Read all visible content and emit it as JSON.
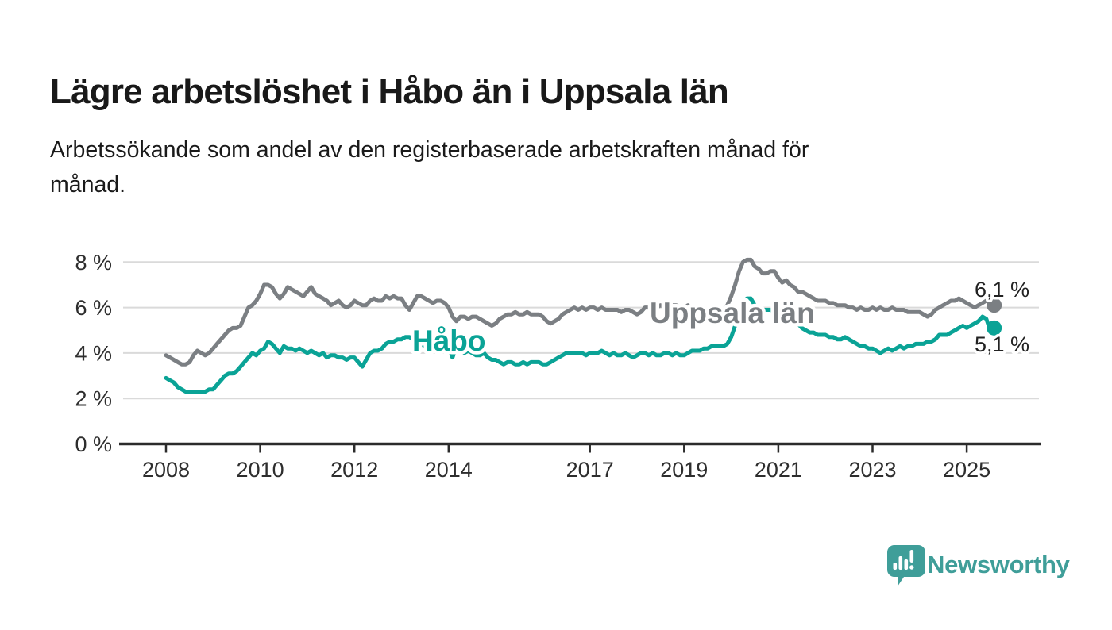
{
  "header": {
    "title": "Lägre arbetslöshet i Håbo än i Uppsala län",
    "subtitle_line1": "Arbetssökande som andel av den registerbaserade arbetskraften månad för",
    "subtitle_line2": "månad."
  },
  "chart_data": {
    "type": "line",
    "unit": "%",
    "grid": true,
    "x_axis": {
      "tick_years": [
        2008,
        2010,
        2012,
        2014,
        2017,
        2019,
        2021,
        2023,
        2025
      ]
    },
    "y_axis": {
      "range": [
        0,
        8.6
      ],
      "ticks": [
        {
          "value": 0,
          "label": "0 %"
        },
        {
          "value": 2,
          "label": "2 %"
        },
        {
          "value": 4,
          "label": "4 %"
        },
        {
          "value": 6,
          "label": "6 %"
        },
        {
          "value": 8,
          "label": "8 %"
        }
      ]
    },
    "start_year": 2008,
    "interval_months": 1,
    "colors": {
      "grid": "#dadada",
      "axis": "#2b2b2b",
      "tick_text": "#2e2e2e",
      "value_label_text": "#222222"
    },
    "series": [
      {
        "name": "Uppsala län",
        "color": "#7b7f83",
        "end_label": "6,1 %",
        "values": [
          3.9,
          3.8,
          3.7,
          3.6,
          3.5,
          3.5,
          3.6,
          3.9,
          4.1,
          4.0,
          3.9,
          4.0,
          4.2,
          4.4,
          4.6,
          4.8,
          5.0,
          5.1,
          5.1,
          5.2,
          5.6,
          6.0,
          6.1,
          6.3,
          6.6,
          7.0,
          7.0,
          6.9,
          6.6,
          6.4,
          6.6,
          6.9,
          6.8,
          6.7,
          6.6,
          6.5,
          6.7,
          6.9,
          6.6,
          6.5,
          6.4,
          6.3,
          6.1,
          6.2,
          6.3,
          6.1,
          6.0,
          6.1,
          6.3,
          6.2,
          6.1,
          6.1,
          6.3,
          6.4,
          6.3,
          6.3,
          6.5,
          6.4,
          6.5,
          6.4,
          6.4,
          6.1,
          5.9,
          6.2,
          6.5,
          6.5,
          6.4,
          6.3,
          6.2,
          6.3,
          6.3,
          6.2,
          6.0,
          5.6,
          5.4,
          5.6,
          5.6,
          5.5,
          5.6,
          5.6,
          5.5,
          5.4,
          5.3,
          5.2,
          5.3,
          5.5,
          5.6,
          5.7,
          5.7,
          5.8,
          5.7,
          5.7,
          5.8,
          5.7,
          5.7,
          5.7,
          5.6,
          5.4,
          5.3,
          5.4,
          5.5,
          5.7,
          5.8,
          5.9,
          6.0,
          5.9,
          6.0,
          5.9,
          6.0,
          6.0,
          5.9,
          6.0,
          5.9,
          5.9,
          5.9,
          5.9,
          5.8,
          5.9,
          5.9,
          5.8,
          5.7,
          5.8,
          6.0,
          6.0,
          6.1,
          6.0,
          6.1,
          6.0,
          6.0,
          6.1,
          6.1,
          6.0,
          6.0,
          6.1,
          6.0,
          6.0,
          5.9,
          5.9,
          5.9,
          5.9,
          5.9,
          6.0,
          5.9,
          6.1,
          6.5,
          7.0,
          7.6,
          8.0,
          8.1,
          8.1,
          7.8,
          7.7,
          7.5,
          7.5,
          7.6,
          7.6,
          7.3,
          7.1,
          7.2,
          7.0,
          6.9,
          6.7,
          6.7,
          6.6,
          6.5,
          6.4,
          6.3,
          6.3,
          6.3,
          6.2,
          6.2,
          6.1,
          6.1,
          6.1,
          6.0,
          6.0,
          5.9,
          6.0,
          5.9,
          5.9,
          6.0,
          5.9,
          6.0,
          5.9,
          5.9,
          6.0,
          5.9,
          5.9,
          5.9,
          5.8,
          5.8,
          5.8,
          5.8,
          5.7,
          5.6,
          5.7,
          5.9,
          6.0,
          6.1,
          6.2,
          6.3,
          6.3,
          6.4,
          6.3,
          6.2,
          6.1,
          6.0,
          6.1,
          6.2,
          6.3,
          6.2,
          6.1
        ]
      },
      {
        "name": "Håbo",
        "color": "#0aa396",
        "end_label": "5,1 %",
        "values": [
          2.9,
          2.8,
          2.7,
          2.5,
          2.4,
          2.3,
          2.3,
          2.3,
          2.3,
          2.3,
          2.3,
          2.4,
          2.4,
          2.6,
          2.8,
          3.0,
          3.1,
          3.1,
          3.2,
          3.4,
          3.6,
          3.8,
          4.0,
          3.9,
          4.1,
          4.2,
          4.5,
          4.4,
          4.2,
          4.0,
          4.3,
          4.2,
          4.2,
          4.1,
          4.2,
          4.1,
          4.0,
          4.1,
          4.0,
          3.9,
          4.0,
          3.8,
          3.9,
          3.9,
          3.8,
          3.8,
          3.7,
          3.8,
          3.8,
          3.6,
          3.4,
          3.7,
          4.0,
          4.1,
          4.1,
          4.2,
          4.4,
          4.5,
          4.5,
          4.6,
          4.6,
          4.7,
          4.7,
          4.6,
          4.5,
          4.4,
          4.3,
          4.3,
          4.3,
          4.3,
          4.2,
          4.3,
          4.2,
          3.8,
          4.3,
          4.1,
          4.0,
          4.1,
          4.0,
          3.9,
          3.9,
          4.0,
          3.8,
          3.7,
          3.7,
          3.6,
          3.5,
          3.6,
          3.6,
          3.5,
          3.5,
          3.6,
          3.5,
          3.6,
          3.6,
          3.6,
          3.5,
          3.5,
          3.6,
          3.7,
          3.8,
          3.9,
          4.0,
          4.0,
          4.0,
          4.0,
          4.0,
          3.9,
          4.0,
          4.0,
          4.0,
          4.1,
          4.0,
          3.9,
          4.0,
          3.9,
          3.9,
          4.0,
          3.9,
          3.8,
          3.9,
          4.0,
          4.0,
          3.9,
          4.0,
          3.9,
          3.9,
          4.0,
          4.0,
          3.9,
          4.0,
          3.9,
          3.9,
          4.0,
          4.1,
          4.1,
          4.1,
          4.2,
          4.2,
          4.3,
          4.3,
          4.3,
          4.3,
          4.4,
          4.7,
          5.2,
          5.8,
          6.2,
          6.4,
          6.4,
          6.1,
          6.0,
          5.9,
          5.9,
          5.9,
          5.8,
          5.7,
          5.6,
          5.6,
          5.8,
          5.5,
          5.3,
          5.1,
          5.0,
          4.9,
          4.9,
          4.8,
          4.8,
          4.8,
          4.7,
          4.7,
          4.6,
          4.6,
          4.7,
          4.6,
          4.5,
          4.4,
          4.3,
          4.3,
          4.2,
          4.2,
          4.1,
          4.0,
          4.1,
          4.2,
          4.1,
          4.2,
          4.3,
          4.2,
          4.3,
          4.3,
          4.4,
          4.4,
          4.4,
          4.5,
          4.5,
          4.6,
          4.8,
          4.8,
          4.8,
          4.9,
          5.0,
          5.1,
          5.2,
          5.1,
          5.2,
          5.3,
          5.4,
          5.6,
          5.5,
          5.0,
          5.1
        ]
      }
    ]
  },
  "branding": {
    "name": "Newsworthy",
    "color": "#3f9e99",
    "icon": "newsworthy-speech-bubble-chart-icon"
  }
}
